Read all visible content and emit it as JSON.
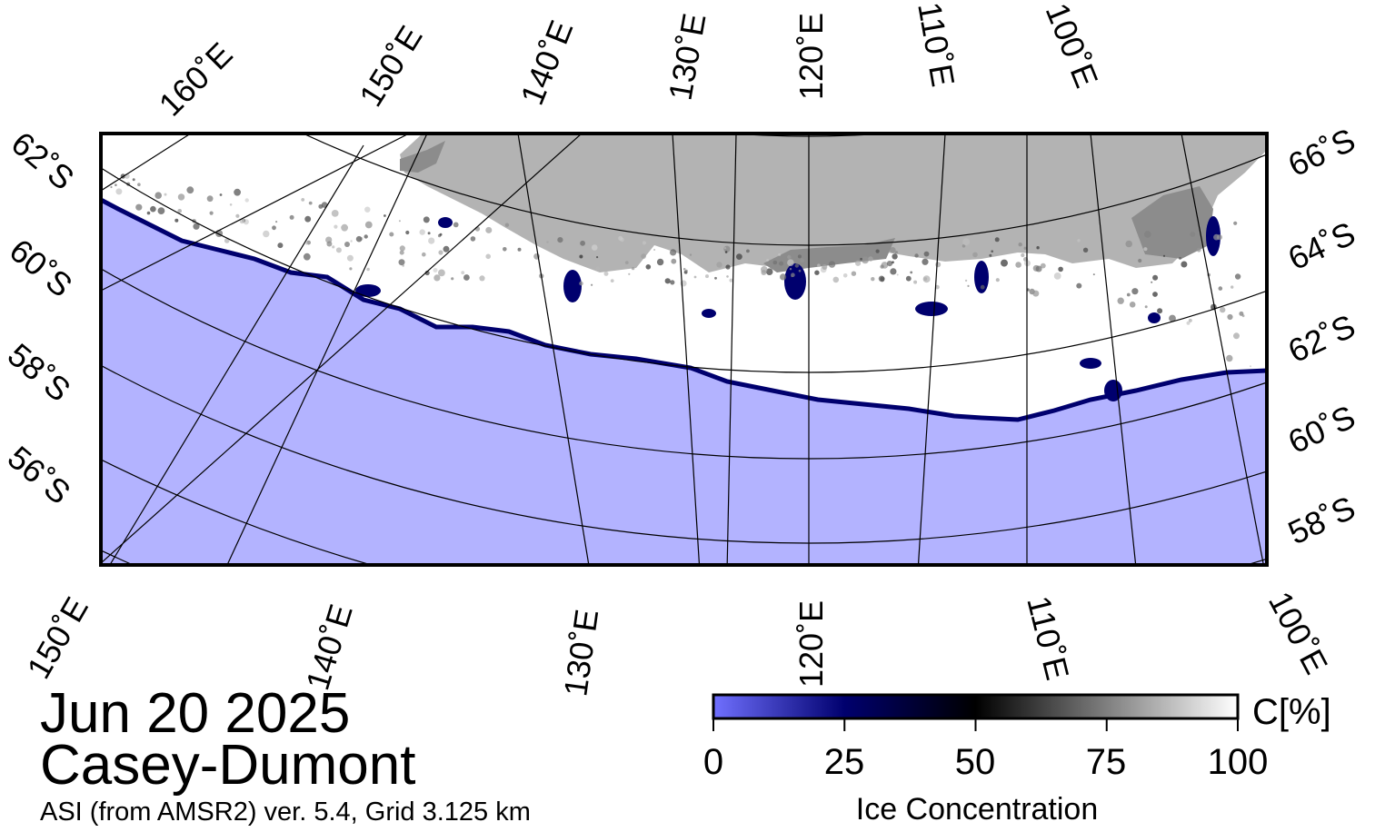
{
  "map": {
    "date": "Jun 20 2025",
    "region": "Casey-Dumont",
    "product": "ASI (from AMSR2) ver. 5.4,  Grid 3.125 km",
    "colors": {
      "ocean": "#b3b3ff",
      "land": "#b3b3b3",
      "ice_shelf": "#8c8c8c",
      "sea_ice": "#ffffff",
      "frame": "#000000"
    },
    "top_longitude_labels": [
      "160˚E",
      "150˚E",
      "140˚E",
      "130˚E",
      "120˚E",
      "110˚E",
      "100˚E"
    ],
    "bottom_longitude_labels": [
      "150˚E",
      "140˚E",
      "130˚E",
      "120˚E",
      "110˚E",
      "100˚E"
    ],
    "left_latitude_labels": [
      "62˚S",
      "60˚S",
      "58˚S",
      "56˚S"
    ],
    "right_latitude_labels": [
      "66˚S",
      "64˚S",
      "62˚S",
      "60˚S",
      "58˚S"
    ]
  },
  "colorbar": {
    "unit": "C[%]",
    "title": "Ice Concentration",
    "ticks": [
      "0",
      "25",
      "50",
      "75",
      "100"
    ],
    "colors": [
      "#7070ff",
      "#00006e",
      "#000000",
      "#7f7f7f",
      "#ffffff"
    ]
  }
}
